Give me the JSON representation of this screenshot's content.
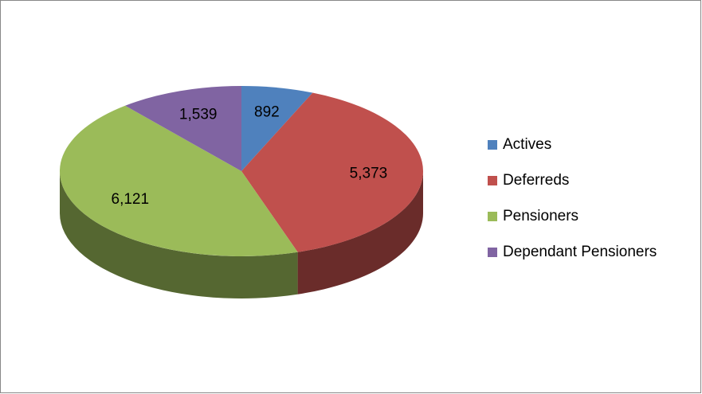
{
  "chart_data": {
    "type": "pie3d",
    "categories": [
      "Actives",
      "Deferreds",
      "Pensioners",
      "Dependant Pensioners"
    ],
    "values": [
      892,
      5373,
      6121,
      1539
    ],
    "value_labels": [
      "892",
      "5,373",
      "6,121",
      "1,539"
    ],
    "colors": [
      "#4f81bd",
      "#c0504d",
      "#9bbb59",
      "#8064a2"
    ],
    "legend": "right"
  }
}
